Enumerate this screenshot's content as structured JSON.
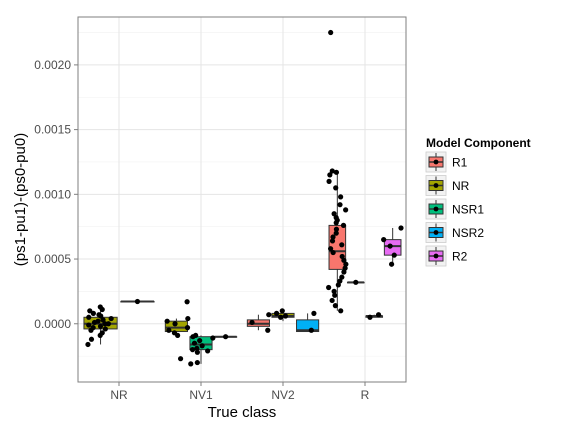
{
  "chart_data": {
    "type": "box",
    "xlabel": "True class",
    "ylabel": "(ps1-pu1)-(ps0-pu0)",
    "categories": [
      "NR",
      "NV1",
      "NV2",
      "R"
    ],
    "ylim": [
      -0.00045,
      0.00237
    ],
    "yticks": [
      0.0,
      0.0005,
      0.001,
      0.0015,
      0.002
    ],
    "ytick_labels": [
      "0.0000",
      "0.0005",
      "0.0010",
      "0.0015",
      "0.0020"
    ],
    "grid": true,
    "legend": {
      "title": "Model Component",
      "position": "right",
      "entries": [
        {
          "name": "R1",
          "color": "#F8766D"
        },
        {
          "name": "NR",
          "color": "#A3A500"
        },
        {
          "name": "NSR1",
          "color": "#00BF7D"
        },
        {
          "name": "NSR2",
          "color": "#00B0F6"
        },
        {
          "name": "R2",
          "color": "#E76BF3"
        }
      ]
    },
    "boxes": [
      {
        "category": "NR",
        "component": "NR",
        "q1": -4e-05,
        "median": 0.0,
        "q3": 5e-05,
        "whisker_low": -0.00016,
        "whisker_high": 0.00013
      },
      {
        "category": "NR",
        "component": "R2",
        "q1": 0.000172,
        "median": 0.000172,
        "q3": 0.000172,
        "whisker_low": 0.000172,
        "whisker_high": 0.000172
      },
      {
        "category": "NV1",
        "component": "NR",
        "q1": -6e-05,
        "median": -3e-05,
        "q3": 2e-05,
        "whisker_low": -9e-05,
        "whisker_high": 4e-05
      },
      {
        "category": "NV1",
        "component": "NSR1",
        "q1": -0.0002,
        "median": -0.00016,
        "q3": -0.0001,
        "whisker_low": -0.00031,
        "whisker_high": -9e-05
      },
      {
        "category": "NV1",
        "component": "NSR2",
        "q1": -0.0001,
        "median": -0.0001,
        "q3": -0.0001,
        "whisker_low": -0.0001,
        "whisker_high": -0.0001
      },
      {
        "category": "NV2",
        "component": "R1",
        "q1": -2e-05,
        "median": 0.0,
        "q3": 3e-05,
        "whisker_low": -5e-05,
        "whisker_high": 7e-05
      },
      {
        "category": "NV2",
        "component": "NR",
        "q1": 5e-05,
        "median": 6e-05,
        "q3": 8e-05,
        "whisker_low": 2e-05,
        "whisker_high": 0.0001
      },
      {
        "category": "NV2",
        "component": "NSR2",
        "q1": -6e-05,
        "median": -5e-05,
        "q3": 3e-05,
        "whisker_low": -6e-05,
        "whisker_high": 8e-05
      },
      {
        "category": "R",
        "component": "R1",
        "q1": 0.00042,
        "median": 0.00056,
        "q3": 0.00076,
        "whisker_low": 0.0001,
        "whisker_high": 0.00118
      },
      {
        "category": "R",
        "component": "NR",
        "q1": 0.00032,
        "median": 0.00032,
        "q3": 0.00032,
        "whisker_low": 0.00032,
        "whisker_high": 0.00032
      },
      {
        "category": "R",
        "component": "NSR2",
        "q1": 5e-05,
        "median": 6e-05,
        "q3": 6e-05,
        "whisker_low": 5e-05,
        "whisker_high": 7e-05
      },
      {
        "category": "R",
        "component": "R2",
        "q1": 0.00053,
        "median": 0.0006,
        "q3": 0.00065,
        "whisker_low": 0.00046,
        "whisker_high": 0.00074
      }
    ],
    "points": [
      {
        "category": "NR",
        "component": "NR",
        "y": [
          0.00013,
          0.00011,
          0.0001,
          8e-05,
          7e-05,
          6e-05,
          5e-05,
          4e-05,
          3e-05,
          2e-05,
          1e-05,
          0.0,
          0.0,
          -1e-05,
          -2e-05,
          -3e-05,
          -4e-05,
          -5e-05,
          -7e-05,
          -9e-05,
          -0.00012,
          -0.00016
        ]
      },
      {
        "category": "NR",
        "component": "R2",
        "y": [
          0.000172
        ]
      },
      {
        "category": "NV1",
        "component": "NR",
        "y": [
          0.00017,
          4e-05,
          2e-05,
          0.0,
          -3e-05,
          -5e-05,
          -7e-05,
          -9e-05,
          -0.00027
        ]
      },
      {
        "category": "NV1",
        "component": "NSR1",
        "y": [
          -9e-05,
          -0.0001,
          -0.00011,
          -0.00013,
          -0.00015,
          -0.00017,
          -0.00019,
          -0.0002,
          -0.00021,
          -0.00022,
          -0.0003,
          -0.00031
        ]
      },
      {
        "category": "NV1",
        "component": "NSR2",
        "y": [
          -0.0001
        ]
      },
      {
        "category": "NV2",
        "component": "R1",
        "y": [
          7e-05,
          1e-05,
          -5e-05
        ]
      },
      {
        "category": "NV2",
        "component": "NR",
        "y": [
          0.0001,
          8e-05,
          6e-05,
          5e-05
        ]
      },
      {
        "category": "NV2",
        "component": "NSR2",
        "y": [
          8e-05,
          -5e-05
        ]
      },
      {
        "category": "R",
        "component": "R1",
        "y": [
          0.00225,
          0.00118,
          0.00117,
          0.00115,
          0.0011,
          0.00105,
          0.00098,
          0.00092,
          0.00088,
          0.00085,
          0.00082,
          0.0008,
          0.00078,
          0.00076,
          0.00073,
          0.0007,
          0.00067,
          0.00064,
          0.00061,
          0.00058,
          0.00055,
          0.00052,
          0.00049,
          0.00046,
          0.00043,
          0.0004,
          0.00036,
          0.00033,
          0.0003,
          0.00028,
          0.00025,
          0.00022,
          0.00018,
          0.00014,
          0.0001
        ]
      },
      {
        "category": "R",
        "component": "NR",
        "y": [
          0.00032
        ]
      },
      {
        "category": "R",
        "component": "NSR2",
        "y": [
          7e-05,
          5e-05
        ]
      },
      {
        "category": "R",
        "component": "R2",
        "y": [
          0.00074,
          0.00065,
          0.0006,
          0.00053,
          0.00046
        ]
      }
    ]
  }
}
